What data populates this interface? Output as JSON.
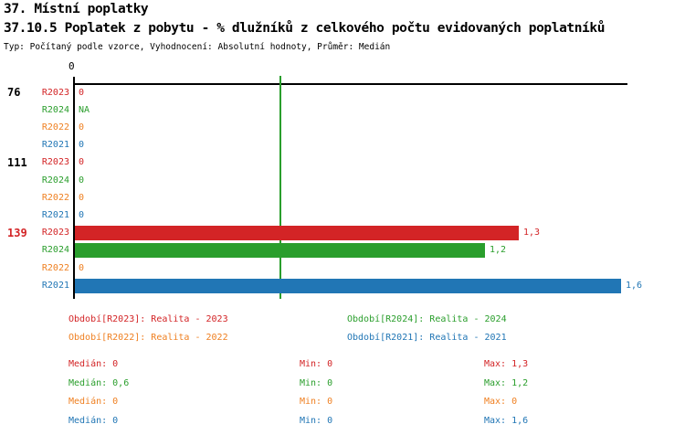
{
  "header": {
    "title_line1": "37. Místní poplatky",
    "title_line2": "37.10.5 Poplatek z pobytu - % dlužníků z celkového počtu evidovaných poplatníků",
    "subtitle": "Typ: Počítaný podle vzorce, Vyhodnocení: Absolutní hodnoty, Průměr: Medián"
  },
  "colors": {
    "R2023": "#d32426",
    "R2024": "#2a9e2c",
    "R2022": "#ef8022",
    "R2021": "#2176b5",
    "axis": "#000000",
    "median_line": "#2a9e2c"
  },
  "chart_data": {
    "type": "bar",
    "orientation": "horizontal",
    "x_axis": {
      "zero_label": "0",
      "min": 0
    },
    "median_line": {
      "series": "R2024",
      "value": 0.6
    },
    "series_order": [
      "R2023",
      "R2024",
      "R2022",
      "R2021"
    ],
    "groups": [
      {
        "label": "76",
        "label_color": "#000000",
        "rows": [
          {
            "series": "R2023",
            "value": 0,
            "display": "0"
          },
          {
            "series": "R2024",
            "value": null,
            "display": "NA"
          },
          {
            "series": "R2022",
            "value": 0,
            "display": "0"
          },
          {
            "series": "R2021",
            "value": 0,
            "display": "0"
          }
        ]
      },
      {
        "label": "111",
        "label_color": "#000000",
        "rows": [
          {
            "series": "R2023",
            "value": 0,
            "display": "0"
          },
          {
            "series": "R2024",
            "value": 0,
            "display": "0"
          },
          {
            "series": "R2022",
            "value": 0,
            "display": "0"
          },
          {
            "series": "R2021",
            "value": 0,
            "display": "0"
          }
        ]
      },
      {
        "label": "139",
        "label_color": "#d32426",
        "rows": [
          {
            "series": "R2023",
            "value": 1.3,
            "display": "1,3"
          },
          {
            "series": "R2024",
            "value": 1.2,
            "display": "1,2"
          },
          {
            "series": "R2022",
            "value": 0,
            "display": "0"
          },
          {
            "series": "R2021",
            "value": 1.6,
            "display": "1,6"
          }
        ]
      }
    ],
    "stats_per_series": [
      {
        "series": "R2023",
        "median": 0,
        "min": 0,
        "max": 1.3
      },
      {
        "series": "R2024",
        "median": 0.6,
        "min": 0,
        "max": 1.2
      },
      {
        "series": "R2022",
        "median": 0,
        "min": 0,
        "max": 0
      },
      {
        "series": "R2021",
        "median": 0,
        "min": 0,
        "max": 1.6
      }
    ]
  },
  "legend": [
    {
      "series": "R2023",
      "text": "Období[R2023]: Realita - 2023",
      "col": 0,
      "row": 0
    },
    {
      "series": "R2024",
      "text": "Období[R2024]: Realita - 2024",
      "col": 1,
      "row": 0
    },
    {
      "series": "R2022",
      "text": "Období[R2022]: Realita - 2022",
      "col": 0,
      "row": 1
    },
    {
      "series": "R2021",
      "text": "Období[R2021]: Realita - 2021",
      "col": 1,
      "row": 1
    }
  ],
  "stats": [
    {
      "series": "R2023",
      "median_text": "Medián: 0",
      "min_text": "Min: 0",
      "max_text": "Max: 1,3"
    },
    {
      "series": "R2024",
      "median_text": "Medián: 0,6",
      "min_text": "Min: 0",
      "max_text": "Max: 1,2"
    },
    {
      "series": "R2022",
      "median_text": "Medián: 0",
      "min_text": "Min: 0",
      "max_text": "Max: 0"
    },
    {
      "series": "R2021",
      "median_text": "Medián: 0",
      "min_text": "Min: 0",
      "max_text": "Max: 1,6"
    }
  ]
}
